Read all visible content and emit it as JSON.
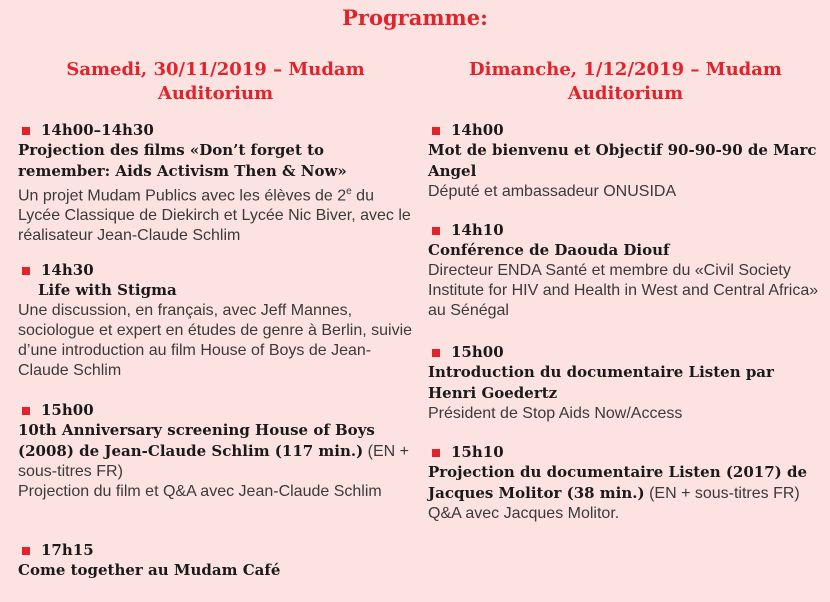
{
  "header": {
    "title": "Programme:"
  },
  "columns": [
    {
      "heading": "Samedi, 30/11/2019 – Mudam Auditorium",
      "items": [
        {
          "time": "14h00–14h30",
          "title": "Projection des films «Don’t forget to remember: Aids Activism Then & Now»",
          "description": "Un projet Mudam Publics avec les élèves de 2",
          "superscript": "e",
          "description_end": " du Lycée Classique de Diekirch et Lycée Nic Biver, avec le réalisateur Jean-Claude Schlim"
        },
        {
          "time": "14h30",
          "title": "Life with Stigma",
          "description": "Une discussion, en français, avec Jeff Mannes, sociologue et expert en études de genre à Berlin, suivie d’une introduction au film House of Boys de Jean-Claude Schlim"
        },
        {
          "time": "15h00",
          "title": "10th Anniversary screening House of Boys (2008) de Jean-Claude Schlim (117 min.)",
          "title_note": "(EN + sous-titres FR)",
          "description": "Projection du film et Q&A avec Jean-Claude Schlim"
        },
        {
          "time": "17h15",
          "title": "Come together au Mudam Café"
        }
      ]
    },
    {
      "heading": "Dimanche, 1/12/2019 – Mudam Auditorium",
      "items": [
        {
          "time": "14h00",
          "title": "Mot de bienvenu et Objectif 90-90-90 de Marc Angel",
          "description": "Député et ambassadeur ONUSIDA"
        },
        {
          "time": "14h10",
          "title": "Conférence de Daouda Diouf",
          "description": "Directeur ENDA Santé et membre du «Civil Society Institute for HIV and Health in West and Central Africa» au Sénégal"
        },
        {
          "time": "15h00",
          "title": "Introduction du documentaire Listen par Henri Goedertz",
          "description": "Président de Stop Aids Now/Access"
        },
        {
          "time": "15h10",
          "title": "Projection du documentaire Listen (2017) de Jacques Molitor (38 min.)",
          "title_note": "(EN + sous-titres FR)",
          "description": "Q&A avec Jacques Molitor."
        }
      ]
    }
  ]
}
